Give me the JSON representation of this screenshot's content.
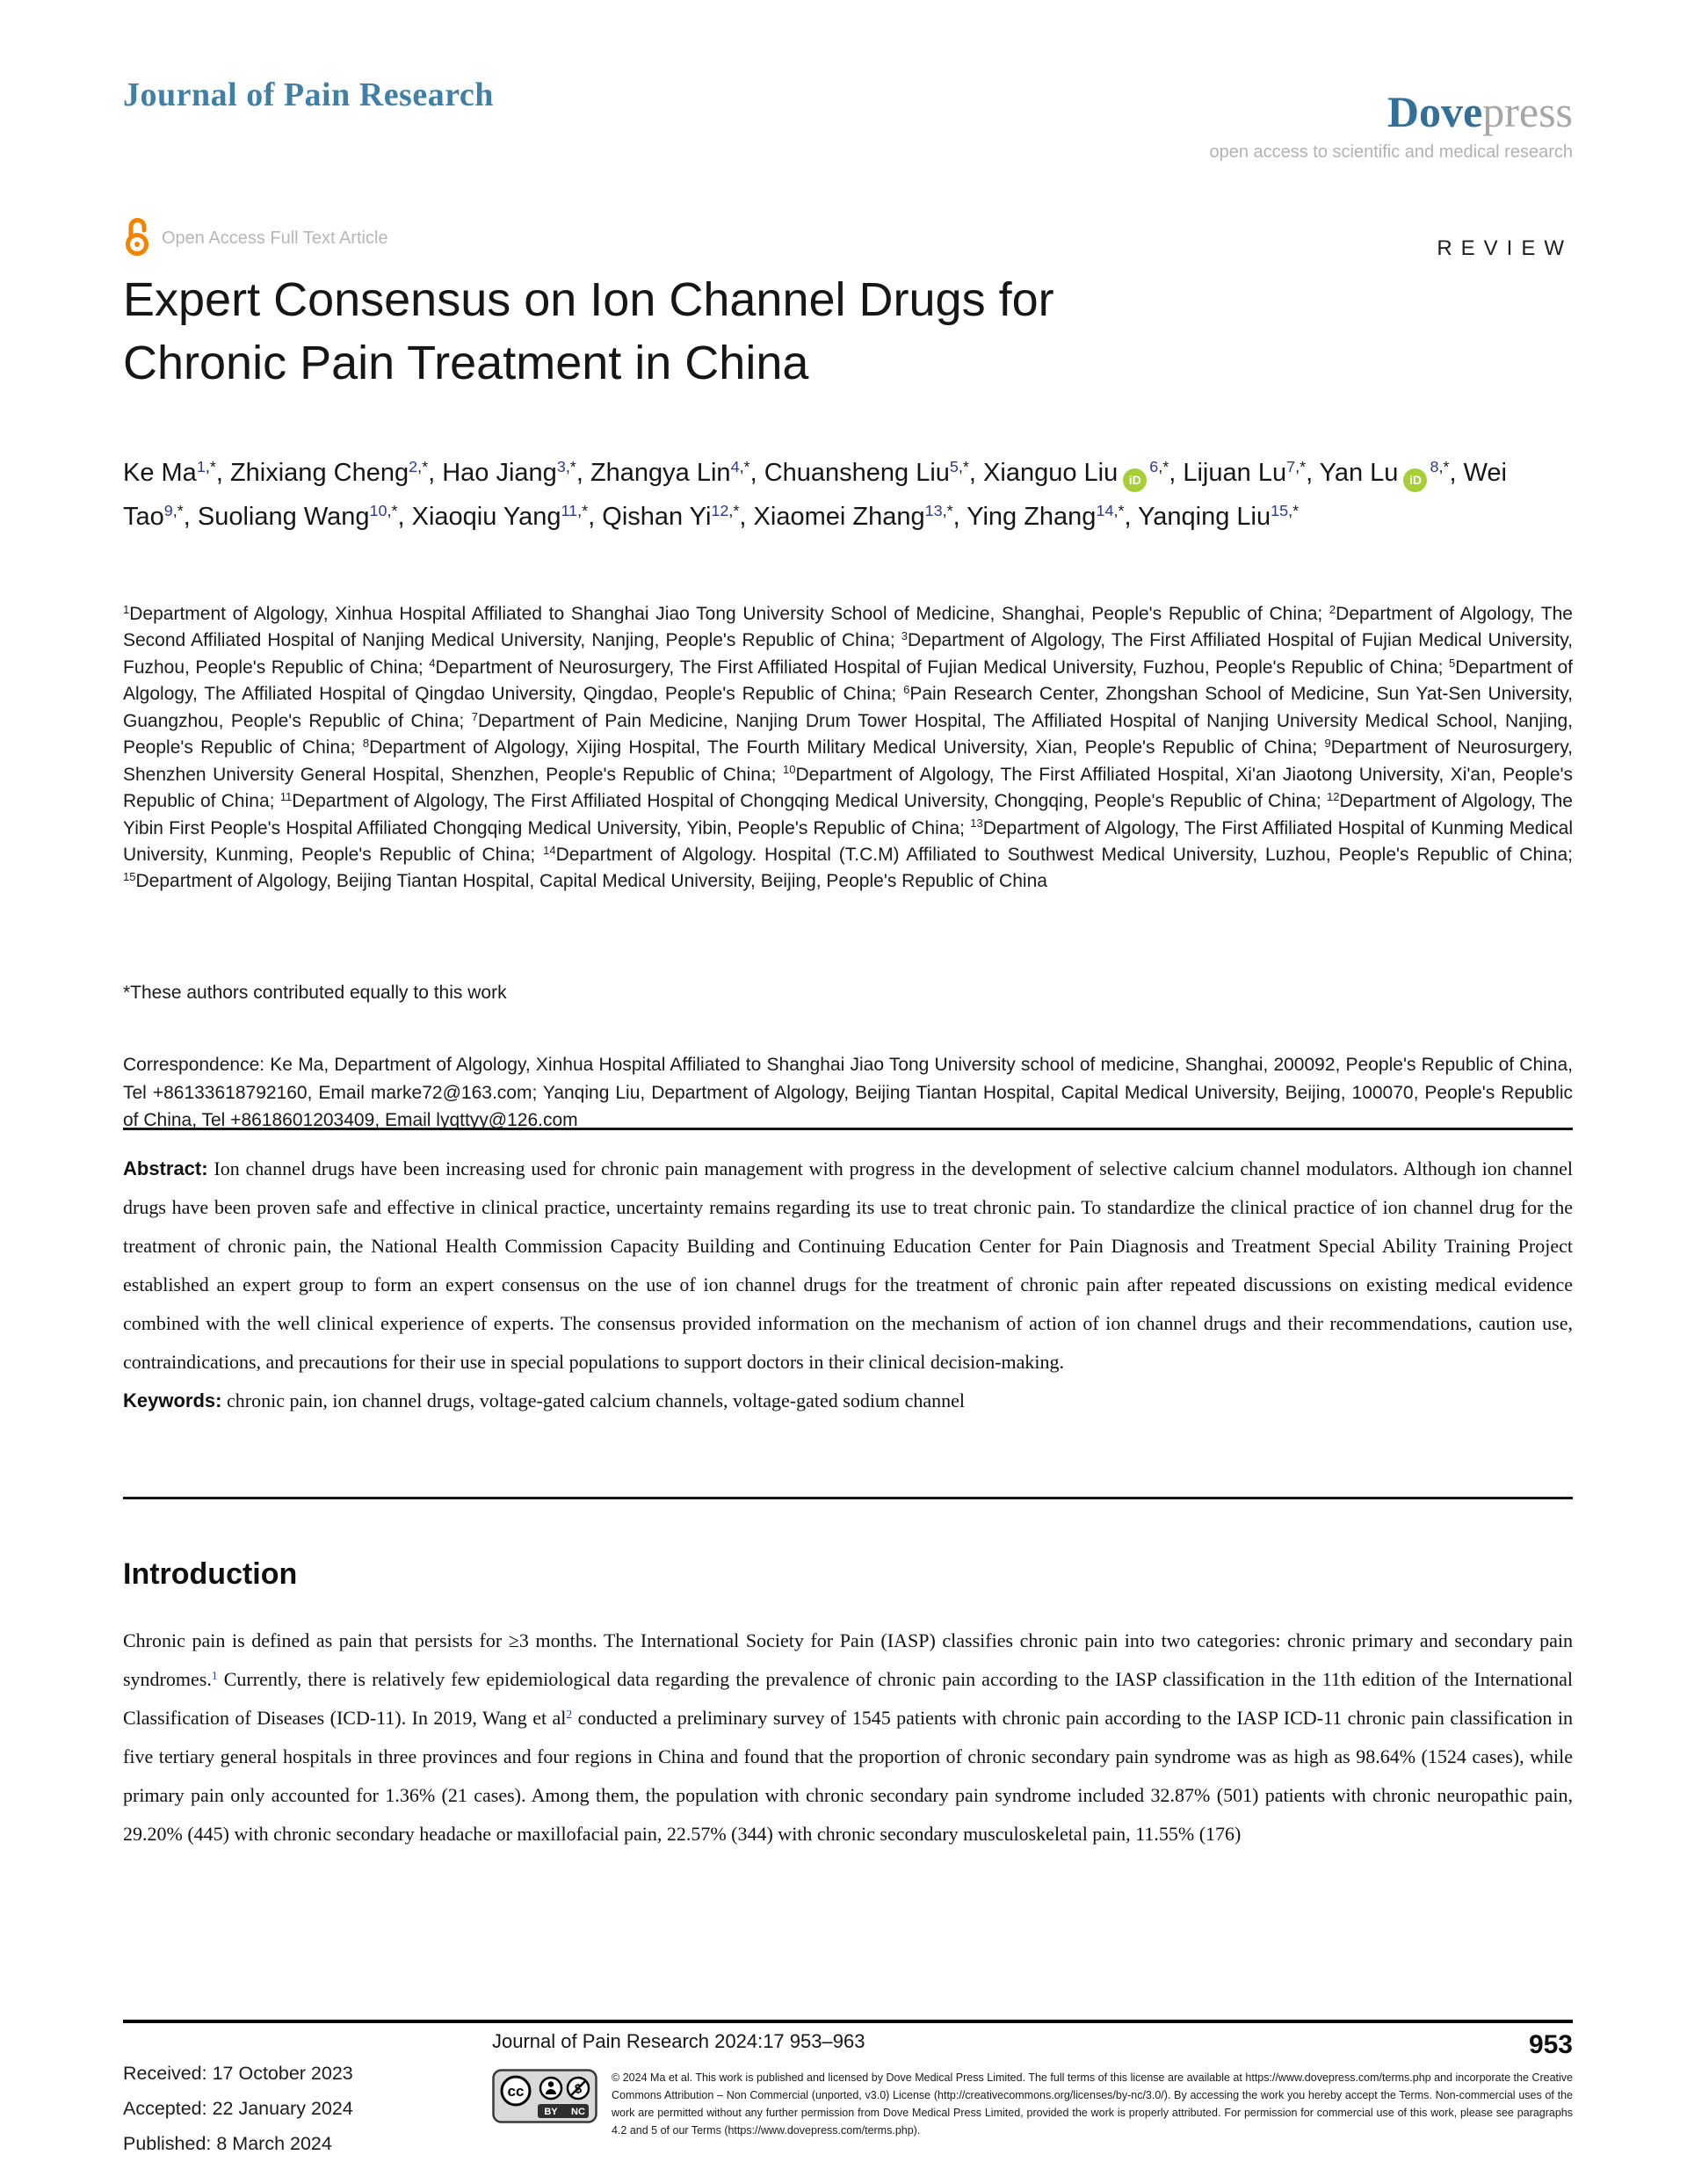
{
  "header": {
    "journal_name": "Journal of Pain Research",
    "publisher_dove": "Dove",
    "publisher_press": "press",
    "tagline": "open access to scientific and medical research",
    "open_access_label": "Open Access Full Text Article",
    "article_type": "REVIEW"
  },
  "article": {
    "title": "Expert Consensus on Ion Channel Drugs for Chronic Pain Treatment in China",
    "orcid_label": "iD",
    "sup_star": ",*",
    "authors": [
      {
        "name": "Ke Ma",
        "sup": "1"
      },
      {
        "name": "Zhixiang Cheng",
        "sup": "2"
      },
      {
        "name": "Hao Jiang",
        "sup": "3"
      },
      {
        "name": "Zhangya Lin",
        "sup": "4"
      },
      {
        "name": "Chuansheng Liu",
        "sup": "5"
      },
      {
        "name": "Xianguo Liu",
        "orcid": true,
        "sup": "6"
      },
      {
        "name": "Lijuan Lu",
        "sup": "7"
      },
      {
        "name": "Yan Lu",
        "orcid": true,
        "sup": "8"
      },
      {
        "name": "Wei Tao",
        "sup": "9"
      },
      {
        "name": "Suoliang Wang",
        "sup": "10"
      },
      {
        "name": "Xiaoqiu Yang",
        "sup": "11"
      },
      {
        "name": "Qishan Yi",
        "sup": "12"
      },
      {
        "name": "Xiaomei Zhang",
        "sup": "13"
      },
      {
        "name": "Ying Zhang",
        "sup": "14"
      },
      {
        "name": "Yanqing Liu",
        "sup": "15"
      }
    ],
    "affiliations": [
      {
        "num": "1",
        "text": "Department of Algology, Xinhua Hospital Affiliated to Shanghai Jiao Tong University School of Medicine, Shanghai, People's Republic of China"
      },
      {
        "num": "2",
        "text": "Department of Algology, The Second Affiliated Hospital of Nanjing Medical University, Nanjing, People's Republic of China"
      },
      {
        "num": "3",
        "text": "Department of Algology, The First Affiliated Hospital of Fujian Medical University, Fuzhou, People's Republic of China"
      },
      {
        "num": "4",
        "text": "Department of Neurosurgery, The First Affiliated Hospital of Fujian Medical University, Fuzhou, People's Republic of China"
      },
      {
        "num": "5",
        "text": "Department of Algology, The Affiliated Hospital of Qingdao University, Qingdao, People's Republic of China"
      },
      {
        "num": "6",
        "text": "Pain Research Center, Zhongshan School of Medicine, Sun Yat-Sen University, Guangzhou, People's Republic of China"
      },
      {
        "num": "7",
        "text": "Department of Pain Medicine, Nanjing Drum Tower Hospital, The Affiliated Hospital of Nanjing University Medical School, Nanjing, People's Republic of China"
      },
      {
        "num": "8",
        "text": "Department of Algology, Xijing Hospital, The Fourth Military Medical University, Xian, People's Republic of China"
      },
      {
        "num": "9",
        "text": "Department of Neurosurgery, Shenzhen University General Hospital, Shenzhen, People's Republic of China"
      },
      {
        "num": "10",
        "text": "Department of Algology, The First Affiliated Hospital, Xi'an Jiaotong University, Xi'an, People's Republic of China"
      },
      {
        "num": "11",
        "text": "Department of Algology, The First Affiliated Hospital of Chongqing Medical University, Chongqing, People's Republic of China"
      },
      {
        "num": "12",
        "text": "Department of Algology, The Yibin First People's Hospital Affiliated Chongqing Medical University, Yibin, People's Republic of China"
      },
      {
        "num": "13",
        "text": "Department of Algology, The First Affiliated Hospital of Kunming Medical University, Kunming, People's Republic of China"
      },
      {
        "num": "14",
        "text": "Department of Algology. Hospital (T.C.M) Affiliated to Southwest Medical University, Luzhou, People's Republic of China"
      },
      {
        "num": "15",
        "text": "Department of Algology, Beijing Tiantan Hospital, Capital Medical University, Beijing, People's Republic of China"
      }
    ],
    "equal_contrib_note": "*These authors contributed equally to this work",
    "correspondence": "Correspondence: Ke Ma, Department of Algology, Xinhua Hospital Affiliated to Shanghai Jiao Tong University school of medicine, Shanghai, 200092, People's Republic of China, Tel +86133618792160, Email marke72@163.com; Yanqing Liu, Department of Algology, Beijing Tiantan Hospital, Capital Medical University, Beijing, 100070, People's Republic of China, Tel +8618601203409, Email lyqttyy@126.com"
  },
  "abstract": {
    "label": "Abstract:",
    "text": " Ion channel drugs have been increasing used for chronic pain management with progress in the development of selective calcium channel modulators. Although ion channel drugs have been proven safe and effective in clinical practice, uncertainty remains regarding its use to treat chronic pain. To standardize the clinical practice of ion channel drug for the treatment of chronic pain, the National Health Commission Capacity Building and Continuing Education Center for Pain Diagnosis and Treatment Special Ability Training Project established an expert group to form an expert consensus on the use of ion channel drugs for the treatment of chronic pain after repeated discussions on existing medical evidence combined with the well clinical experience of experts. The consensus provided information on the mechanism of action of ion channel drugs and their recommendations, caution use, contraindications, and precautions for their use in special populations to support doctors in their clinical decision-making."
  },
  "keywords": {
    "label": "Keywords:",
    "text": " chronic pain, ion channel drugs, voltage-gated calcium channels, voltage-gated sodium channel"
  },
  "introduction": {
    "heading": "Introduction",
    "segments": [
      {
        "text": "Chronic pain is defined as pain that persists for ≥3 months. The International Society for Pain (IASP) classifies chronic pain into two categories: chronic primary and secondary pain syndromes."
      },
      {
        "ref": "1"
      },
      {
        "text": " Currently, there is relatively few epidemiological data regarding the prevalence of chronic pain according to the IASP classification in the 11th edition of the International Classification of Diseases (ICD-11). In 2019, Wang et al"
      },
      {
        "ref": "2"
      },
      {
        "text": " conducted a preliminary survey of 1545 patients with chronic pain according to the IASP ICD-11 chronic pain classification in five tertiary general hospitals in three provinces and four regions in China and found that the proportion of chronic secondary pain syndrome was as high as 98.64% (1524 cases), while primary pain only accounted for 1.36% (21 cases). Among them, the population with chronic secondary pain syndrome included 32.87% (501) patients with chronic neuropathic pain, 29.20% (445) with chronic secondary headache or maxillofacial pain, 22.57% (344) with chronic secondary musculoskeletal pain, 11.55% (176)"
      }
    ]
  },
  "footer": {
    "received": "Received: 17 October 2023",
    "accepted": "Accepted: 22 January 2024",
    "published": "Published: 8 March 2024",
    "journal_line": "Journal of Pain Research 2024:17 953–963",
    "page_number": "953",
    "cc_by": "BY",
    "cc_nc": "NC",
    "license_text": "© 2024 Ma et al. This work is published and licensed by Dove Medical Press Limited. The full terms of this license are available at https://www.dovepress.com/terms.php and incorporate the Creative Commons Attribution – Non Commercial (unported, v3.0) License (http://creativecommons.org/licenses/by-nc/3.0/). By accessing the work you hereby accept the Terms. Non-commercial uses of the work are permitted without any further permission from Dove Medical Press Limited, provided the work is properly attributed. For permission for commercial use of this work, please see paragraphs 4.2 and 5 of our Terms (https://www.dovepress.com/terms.php)."
  },
  "colors": {
    "journal_teal": "#4180a6",
    "dove_blue": "#326f99",
    "gray_text": "#b0b2b5",
    "open_access_orange": "#f08300",
    "orcid_green": "#a6ce39",
    "superscript_blue": "#2b3990",
    "reference_blue": "#33479f"
  }
}
